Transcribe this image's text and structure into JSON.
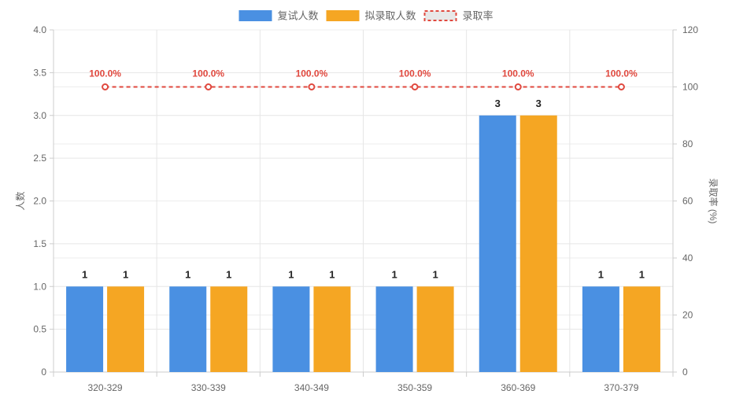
{
  "chart_data": {
    "type": "bar",
    "categories": [
      "320-329",
      "330-339",
      "340-349",
      "350-359",
      "360-369",
      "370-379"
    ],
    "series": [
      {
        "name": "复试人数",
        "type": "bar",
        "axis": "left",
        "values": [
          1,
          1,
          1,
          1,
          3,
          1
        ],
        "color": "#4a90e2"
      },
      {
        "name": "拟录取人数",
        "type": "bar",
        "axis": "left",
        "values": [
          1,
          1,
          1,
          1,
          3,
          1
        ],
        "color": "#f5a623"
      },
      {
        "name": "录取率",
        "type": "line",
        "axis": "right",
        "values": [
          100,
          100,
          100,
          100,
          100,
          100
        ],
        "color": "#e0483e",
        "labels": [
          "100.0%",
          "100.0%",
          "100.0%",
          "100.0%",
          "100.0%",
          "100.0%"
        ]
      }
    ],
    "ylabel": "人数",
    "y2label": "录取率 (%)",
    "ylim": [
      0,
      4
    ],
    "y2lim": [
      0,
      120
    ],
    "yticks": [
      "0",
      "0.5",
      "1.0",
      "1.5",
      "2.0",
      "2.5",
      "3.0",
      "3.5",
      "4.0"
    ],
    "y2ticks": [
      "0",
      "20",
      "40",
      "60",
      "80",
      "100",
      "120"
    ],
    "legend_position": "top-center",
    "grid": true
  }
}
